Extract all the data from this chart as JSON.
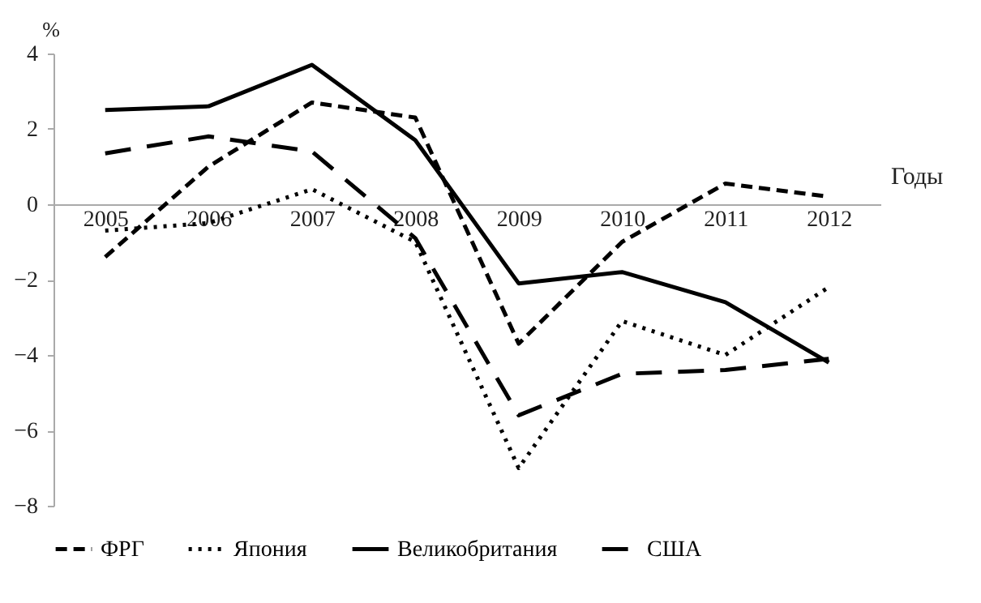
{
  "chart_data": {
    "type": "line",
    "xlabel": "Годы",
    "ylabel": "%",
    "categories": [
      "2005",
      "2006",
      "2007",
      "2008",
      "2009",
      "2010",
      "2011",
      "2012"
    ],
    "series": [
      {
        "name": "ФРГ",
        "color": "#000000",
        "line_style": "dashed",
        "values": [
          -1.4,
          1.0,
          2.7,
          2.3,
          -3.7,
          -1.0,
          0.55,
          0.2
        ]
      },
      {
        "name": "Япония",
        "color": "#000000",
        "line_style": "dotted",
        "values": [
          -0.7,
          -0.5,
          0.4,
          -1.0,
          -7.0,
          -3.1,
          -4.0,
          -2.2
        ]
      },
      {
        "name": "Великобритания",
        "color": "#000000",
        "line_style": "solid",
        "values": [
          2.5,
          2.6,
          3.7,
          1.7,
          -2.1,
          -1.8,
          -2.6,
          -4.2
        ]
      },
      {
        "name": "США",
        "color": "#000000",
        "line_style": "dashed",
        "values": [
          1.35,
          1.8,
          1.4,
          -0.9,
          -5.6,
          -4.5,
          -4.4,
          -4.1
        ]
      }
    ],
    "ylim": [
      -8,
      4
    ],
    "yticks": [
      -8,
      -6,
      -4,
      -2,
      0,
      2,
      4
    ],
    "grid": false,
    "legend": "bottom",
    "marker": "none"
  }
}
